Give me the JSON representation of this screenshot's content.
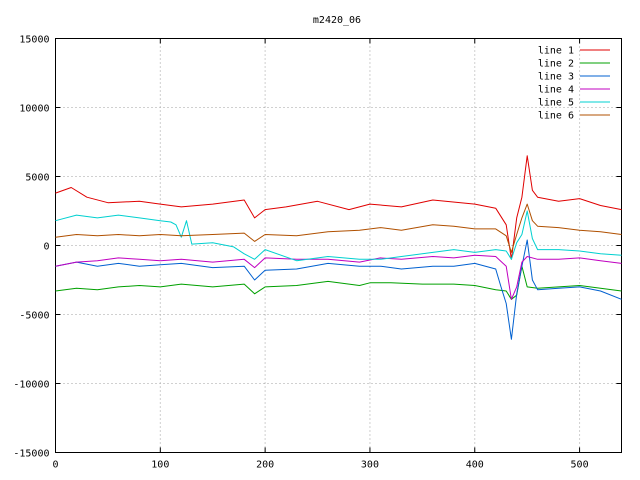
{
  "chart_data": {
    "type": "line",
    "title": "m2420_06",
    "xlabel": "",
    "ylabel": "",
    "xlim": [
      0,
      540
    ],
    "ylim": [
      -15000,
      15000
    ],
    "x_ticks": [
      "0",
      "100",
      "200",
      "300",
      "400",
      "500"
    ],
    "y_ticks": [
      "15000",
      "10000",
      "5000",
      "0",
      "-5000",
      "-10000",
      "-15000"
    ],
    "grid": true,
    "legend_position": "top-right",
    "series": [
      {
        "name": "line 1",
        "color": "#e00000",
        "x": [
          0,
          15,
          30,
          50,
          80,
          100,
          120,
          150,
          180,
          190,
          200,
          220,
          250,
          280,
          300,
          330,
          360,
          400,
          420,
          430,
          435,
          440,
          445,
          450,
          455,
          460,
          480,
          500,
          520,
          540
        ],
        "y": [
          3800,
          4200,
          3500,
          3100,
          3200,
          3000,
          2800,
          3000,
          3300,
          2000,
          2600,
          2800,
          3200,
          2600,
          3000,
          2800,
          3300,
          3000,
          2700,
          1500,
          -1000,
          2000,
          3500,
          6500,
          4000,
          3500,
          3200,
          3400,
          2900,
          2600
        ]
      },
      {
        "name": "line 2",
        "color": "#00a000",
        "x": [
          0,
          20,
          40,
          60,
          80,
          100,
          120,
          150,
          180,
          190,
          200,
          230,
          260,
          290,
          300,
          320,
          350,
          380,
          400,
          420,
          430,
          435,
          440,
          445,
          450,
          460,
          480,
          500,
          520,
          540
        ],
        "y": [
          -3300,
          -3100,
          -3200,
          -3000,
          -2900,
          -3000,
          -2800,
          -3000,
          -2800,
          -3500,
          -3000,
          -2900,
          -2600,
          -2900,
          -2700,
          -2700,
          -2800,
          -2800,
          -2900,
          -3200,
          -3300,
          -3900,
          -3600,
          -1500,
          -3000,
          -3100,
          -3000,
          -2900,
          -3100,
          -3300
        ]
      },
      {
        "name": "line 3",
        "color": "#0060d0",
        "x": [
          0,
          20,
          40,
          60,
          80,
          100,
          120,
          150,
          180,
          190,
          200,
          230,
          260,
          290,
          310,
          330,
          360,
          380,
          400,
          420,
          425,
          430,
          435,
          440,
          445,
          450,
          455,
          460,
          480,
          500,
          520,
          540
        ],
        "y": [
          -1500,
          -1200,
          -1500,
          -1300,
          -1500,
          -1400,
          -1300,
          -1600,
          -1500,
          -2500,
          -1800,
          -1700,
          -1300,
          -1500,
          -1500,
          -1700,
          -1500,
          -1500,
          -1300,
          -1700,
          -3000,
          -4200,
          -6800,
          -3500,
          -1500,
          400,
          -2500,
          -3200,
          -3100,
          -3000,
          -3300,
          -3900
        ]
      },
      {
        "name": "line 4",
        "color": "#c000c0",
        "x": [
          0,
          20,
          40,
          60,
          80,
          100,
          120,
          150,
          180,
          190,
          200,
          230,
          260,
          290,
          310,
          330,
          360,
          380,
          400,
          420,
          430,
          435,
          440,
          445,
          450,
          460,
          480,
          500,
          520,
          540
        ],
        "y": [
          -1500,
          -1200,
          -1100,
          -900,
          -1000,
          -1100,
          -1000,
          -1200,
          -1000,
          -1600,
          -900,
          -1000,
          -1000,
          -1200,
          -900,
          -1000,
          -800,
          -900,
          -700,
          -800,
          -1500,
          -3900,
          -3000,
          -1200,
          -800,
          -1000,
          -1000,
          -900,
          -1100,
          -1300
        ]
      },
      {
        "name": "line 5",
        "color": "#00d0d0",
        "x": [
          0,
          20,
          40,
          60,
          80,
          100,
          110,
          115,
          120,
          125,
          130,
          150,
          170,
          180,
          190,
          200,
          230,
          260,
          290,
          310,
          330,
          360,
          380,
          400,
          420,
          430,
          435,
          440,
          445,
          450,
          455,
          460,
          480,
          500,
          520,
          540
        ],
        "y": [
          1800,
          2200,
          2000,
          2200,
          2000,
          1800,
          1700,
          1500,
          600,
          1800,
          100,
          200,
          -100,
          -600,
          -1000,
          -300,
          -1100,
          -800,
          -1000,
          -1000,
          -800,
          -500,
          -300,
          -500,
          -300,
          -400,
          -1000,
          200,
          800,
          2500,
          500,
          -300,
          -300,
          -400,
          -600,
          -700
        ]
      },
      {
        "name": "line 6",
        "color": "#b05000",
        "x": [
          0,
          20,
          40,
          60,
          80,
          100,
          120,
          150,
          180,
          190,
          200,
          230,
          260,
          290,
          310,
          330,
          360,
          380,
          400,
          420,
          430,
          435,
          440,
          445,
          450,
          455,
          460,
          480,
          500,
          520,
          540
        ],
        "y": [
          600,
          800,
          700,
          800,
          700,
          800,
          700,
          800,
          900,
          300,
          800,
          700,
          1000,
          1100,
          1300,
          1100,
          1500,
          1400,
          1200,
          1200,
          700,
          -500,
          800,
          2000,
          3000,
          1800,
          1400,
          1300,
          1100,
          1000,
          800
        ]
      }
    ]
  }
}
